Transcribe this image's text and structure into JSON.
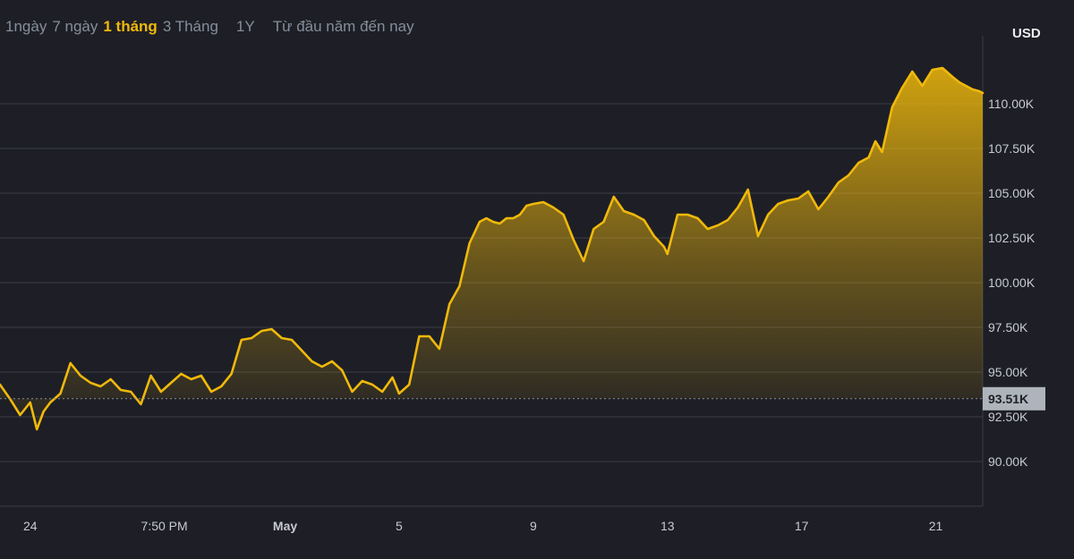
{
  "range_tabs": [
    {
      "label": "1ngày",
      "active": false
    },
    {
      "label": "7 ngày",
      "active": false
    },
    {
      "label": "1 tháng",
      "active": true
    },
    {
      "label": "3 Tháng",
      "active": false
    },
    {
      "label": "1Y",
      "active": false
    },
    {
      "label": "Từ đầu năm đến nay",
      "active": false
    }
  ],
  "currency": "USD",
  "colors": {
    "background": "#1e1f26",
    "line": "#f0b90b",
    "grid": "#3a3d45",
    "tick_text": "#c7cad1",
    "price_badge_bg": "#aeb4bc",
    "price_badge_text": "#1e1f26",
    "active_tab": "#f0b90b",
    "inactive_tab": "#848e9c"
  },
  "chart_data": {
    "type": "area",
    "currency": "USD",
    "y_ticks": [
      "90.00K",
      "92.50K",
      "95.00K",
      "97.50K",
      "100.00K",
      "102.50K",
      "105.00K",
      "107.50K",
      "110.00K"
    ],
    "y_tick_values": [
      90000,
      92500,
      95000,
      97500,
      100000,
      102500,
      105000,
      107500,
      110000
    ],
    "ylim": [
      87500,
      112700
    ],
    "x_ticks": [
      "24",
      "7:50 PM",
      "May",
      "5",
      "9",
      "13",
      "17",
      "21"
    ],
    "x_tick_days": [
      0,
      4,
      7.6,
      11,
      15,
      19,
      23,
      27
    ],
    "xlim": [
      -0.9,
      28.4
    ],
    "grid": "horizontal",
    "current_price": 93510,
    "current_price_label": "93.51K",
    "series": [
      {
        "x": [
          -0.9,
          -0.6,
          -0.3,
          0.0,
          0.2,
          0.4,
          0.6,
          0.9,
          1.2,
          1.5,
          1.8,
          2.1,
          2.4,
          2.7,
          3.0,
          3.3,
          3.6,
          3.9,
          4.2,
          4.5,
          4.8,
          5.1,
          5.4,
          5.7,
          6.0,
          6.3,
          6.6,
          6.9,
          7.2,
          7.5,
          7.8,
          8.1,
          8.4,
          8.7,
          9.0,
          9.3,
          9.6,
          9.9,
          10.2,
          10.5,
          10.8,
          11.0,
          11.3,
          11.6,
          11.9,
          12.2,
          12.5,
          12.8,
          13.1,
          13.4,
          13.6,
          13.8,
          14.0,
          14.2,
          14.4,
          14.6,
          14.8,
          15.0,
          15.3,
          15.6,
          15.9,
          16.2,
          16.5,
          16.8,
          17.1,
          17.4,
          17.7,
          18.0,
          18.3,
          18.6,
          18.9,
          19.0,
          19.3,
          19.6,
          19.9,
          20.2,
          20.5,
          20.8,
          21.1,
          21.4,
          21.7,
          22.0,
          22.3,
          22.6,
          22.9,
          23.2,
          23.5,
          23.8,
          24.1,
          24.4,
          24.7,
          25.0,
          25.2,
          25.4,
          25.7,
          26.0,
          26.3,
          26.6,
          26.9,
          27.2,
          27.5,
          27.7,
          27.9,
          28.1,
          28.3,
          28.4
        ],
        "y": [
          94300,
          93500,
          92600,
          93300,
          91800,
          92800,
          93300,
          93800,
          95500,
          94800,
          94400,
          94200,
          94600,
          94000,
          93900,
          93200,
          94800,
          93900,
          94400,
          94900,
          94600,
          94800,
          93900,
          94200,
          94900,
          96800,
          96900,
          97300,
          97400,
          96900,
          96800,
          96200,
          95600,
          95300,
          95600,
          95100,
          93900,
          94500,
          94300,
          93900,
          94700,
          93800,
          94300,
          97000,
          97000,
          96300,
          98800,
          99800,
          102200,
          103400,
          103600,
          103400,
          103300,
          103600,
          103600,
          103800,
          104300,
          104400,
          104500,
          104200,
          103800,
          102400,
          101200,
          103000,
          103400,
          104800,
          104000,
          103800,
          103500,
          102600,
          102000,
          101600,
          103800,
          103800,
          103600,
          103000,
          103200,
          103500,
          104200,
          105200,
          102600,
          103800,
          104400,
          104600,
          104700,
          105100,
          104100,
          104800,
          105600,
          106000,
          106700,
          107000,
          107900,
          107300,
          109800,
          110900,
          111800,
          111000,
          111900,
          112000,
          111500,
          111200,
          111000,
          110800,
          110700,
          110600
        ]
      }
    ]
  }
}
